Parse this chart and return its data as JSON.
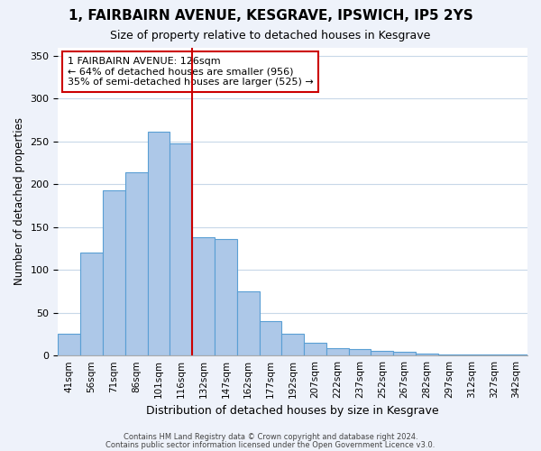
{
  "title": "1, FAIRBAIRN AVENUE, KESGRAVE, IPSWICH, IP5 2YS",
  "subtitle": "Size of property relative to detached houses in Kesgrave",
  "xlabel": "Distribution of detached houses by size in Kesgrave",
  "ylabel": "Number of detached properties",
  "bar_labels": [
    "41sqm",
    "56sqm",
    "71sqm",
    "86sqm",
    "101sqm",
    "116sqm",
    "132sqm",
    "147sqm",
    "162sqm",
    "177sqm",
    "192sqm",
    "207sqm",
    "222sqm",
    "237sqm",
    "252sqm",
    "267sqm",
    "282sqm",
    "297sqm",
    "312sqm",
    "327sqm",
    "342sqm"
  ],
  "bar_values": [
    25,
    120,
    193,
    214,
    261,
    248,
    138,
    136,
    75,
    40,
    25,
    15,
    9,
    8,
    5,
    4,
    2,
    1,
    1,
    1,
    1
  ],
  "bar_color": "#adc8e8",
  "bar_edge_color": "#5a9fd4",
  "vline_x_idx": 6,
  "vline_color": "#cc0000",
  "ylim": [
    0,
    360
  ],
  "yticks": [
    0,
    50,
    100,
    150,
    200,
    250,
    300,
    350
  ],
  "annotation_title": "1 FAIRBAIRN AVENUE: 126sqm",
  "annotation_line1": "← 64% of detached houses are smaller (956)",
  "annotation_line2": "35% of semi-detached houses are larger (525) →",
  "footer_line1": "Contains HM Land Registry data © Crown copyright and database right 2024.",
  "footer_line2": "Contains public sector information licensed under the Open Government Licence v3.0.",
  "bg_color": "#eef2fa",
  "plot_bg_color": "#ffffff"
}
